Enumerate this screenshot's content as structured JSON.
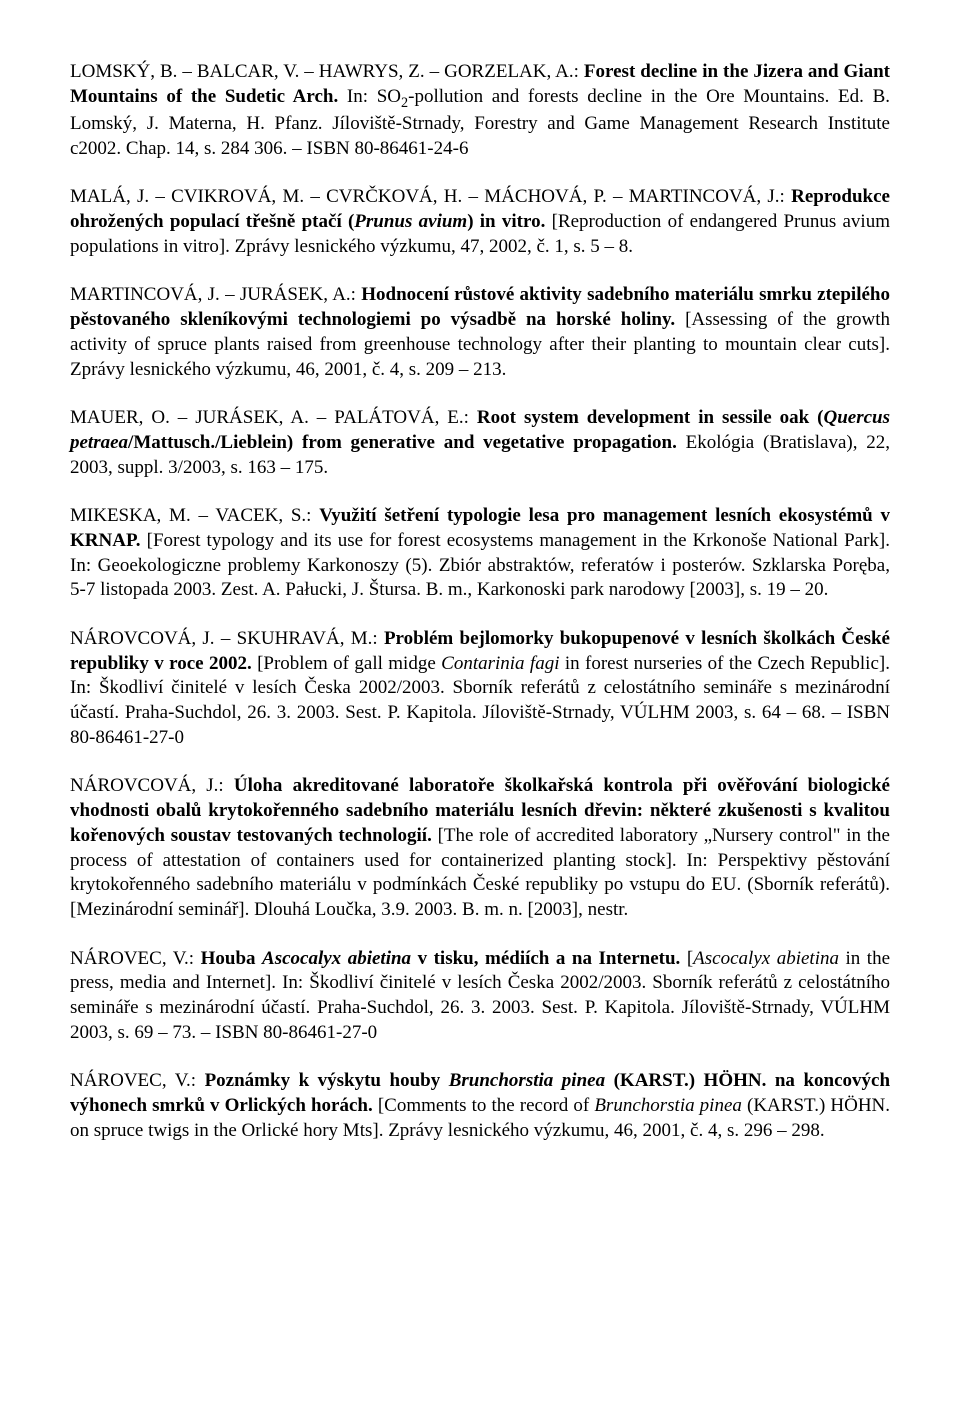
{
  "entries": [
    {
      "pre": "LOMSKÝ, B. – BALCAR, V. – HAWRYS, Z. – GORZELAK, A.: ",
      "title_bold": "Forest decline in the Jizera and Giant Mountains of the Sudetic Arch.",
      "post_pre": " In: SO",
      "sub": "2",
      "post_sub": "-pollution and forests decline in the Ore Mountains. Ed. B. Lomský, J. Materna, H. Pfanz. Jíloviště-Strnady, Forestry and Game Management Research Institute c2002. Chap. 14, s. 284 306. – ISBN 80-86461-24-6"
    },
    {
      "pre": "MALÁ, J. – CVIKROVÁ, M. – CVRČKOVÁ, H. – MÁCHOVÁ, P. – MARTINCOVÁ, J.: ",
      "title_bold_pre": "Reprodukce ohrožených populací třešně ptačí (",
      "title_italic": "Prunus avium",
      "title_bold_post": ") in vitro.",
      "post": " [Reproduction of endangered Prunus avium populations in vitro]. Zprávy lesnického výzkumu, 47, 2002, č. 1, s. 5 – 8."
    },
    {
      "pre": "MARTINCOVÁ, J. – JURÁSEK, A.: ",
      "title_bold": "Hodnocení růstové aktivity sadebního materiálu smrku ztepilého pěstovaného skleníkovými technologiemi po výsadbě na horské holiny.",
      "post": " [Assessing of the growth activity of spruce plants raised from greenhouse technology after their planting to mountain clear cuts]. Zprávy lesnického výzkumu, 46, 2001, č. 4, s. 209 – 213."
    },
    {
      "pre": "MAUER, O. – JURÁSEK, A. – PALÁTOVÁ, E.: ",
      "title_bold_pre": "Root system development in sessile oak (",
      "title_italic": "Quercus petraea",
      "title_bold_post": "/Mattusch./Lieblein) from generative and vegetative propagation.",
      "post": " Ekológia (Bratislava), 22, 2003, suppl. 3/2003, s. 163 – 175."
    },
    {
      "pre": "MIKESKA, M. – VACEK, S.: ",
      "title_bold": "Využití šetření typologie lesa pro management lesních ekosystémů v KRNAP.",
      "post": " [Forest typology and its use for forest ecosystems management in the Krkonoše National Park]. In: Geoekologiczne problemy Karkonoszy (5). Zbiór abstraktów, referatów i posterów. Szklarska Poręba, 5-7 listopada 2003. Zest. A. Pałucki, J. Štursa. B. m., Karkonoski park narodowy [2003], s. 19 – 20."
    },
    {
      "pre": "NÁROVCOVÁ, J. – SKUHRAVÁ, M.: ",
      "title_bold": "Problém bejlomorky bukopupenové v lesních školkách České republiky v roce 2002.",
      "post_pre": " [Problem of gall midge ",
      "post_italic": "Contarinia fagi",
      "post_post": " in forest nurseries of the Czech Republic]. In: Škodliví činitelé v lesích Česka 2002/2003. Sborník referátů z celostátního semináře s mezinárodní účastí. Praha-Suchdol, 26. 3. 2003. Sest. P. Kapitola. Jíloviště-Strnady, VÚLHM 2003, s. 64 – 68. – ISBN 80-86461-27-0"
    },
    {
      "pre": "NÁROVCOVÁ, J.: ",
      "title_bold": "Úloha akreditované laboratoře školkařská kontrola při ověřování biologické vhodnosti obalů krytokořenného sadebního materiálu lesních dřevin: některé zkušenosti s kvalitou kořenových soustav testovaných technologií.",
      "post": " [The role of accredited laboratory „Nursery control\" in the process of attestation of containers used for containerized planting stock]. In: Perspektivy pěstování krytokořenného sadebního materiálu v podmínkách České republiky po vstupu do EU. (Sborník referátů). [Mezinárodní seminář]. Dlouhá Loučka, 3.9. 2003. B. m. n. [2003], nestr."
    },
    {
      "pre": "NÁROVEC, V.: ",
      "title_bold_pre": "Houba ",
      "title_italic": "Ascocalyx abietina",
      "title_bold_post": " v tisku, médiích a na Internetu.",
      "post_pre": " [",
      "post_italic": "Ascocalyx abietina",
      "post_post": " in the press, media and Internet]. In: Škodliví činitelé v lesích Česka 2002/2003. Sborník referátů z celostátního semináře s mezinárodní účastí. Praha-Suchdol, 26. 3. 2003. Sest. P. Kapitola. Jíloviště-Strnady, VÚLHM 2003, s. 69 – 73. – ISBN 80-86461-27-0"
    },
    {
      "pre": "NÁROVEC, V.: ",
      "title_bold_pre": "Poznámky k výskytu houby ",
      "title_italic": "Brunchorstia pinea",
      "title_bold_post": " (KARST.) HÖHN. na koncových výhonech smrků v Orlických horách.",
      "post_pre": " [Comments to the record of ",
      "post_italic": "Brunchorstia pinea",
      "post_post": " (KARST.) HÖHN. on spruce twigs in the Orlické hory Mts]. Zprávy lesnického výzkumu, 46, 2001, č. 4, s. 296 – 298."
    }
  ]
}
